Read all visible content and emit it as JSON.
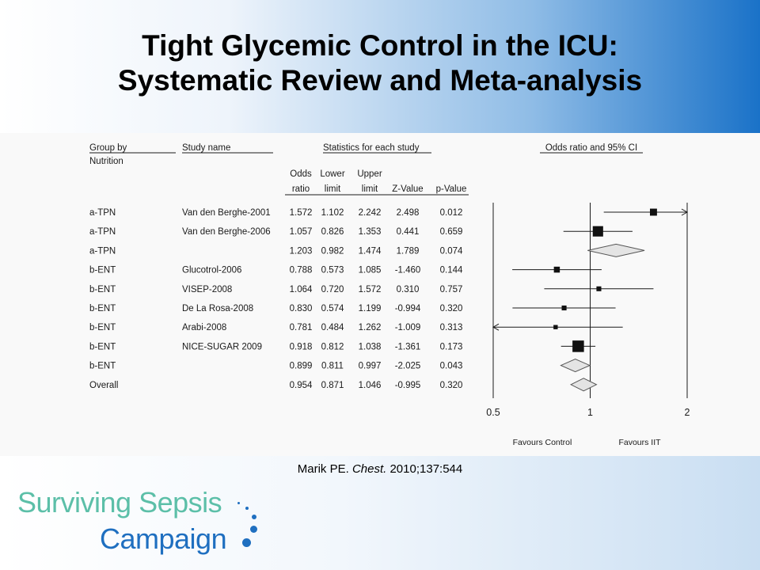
{
  "title": {
    "line1": "Tight Glycemic Control in the ICU:",
    "line2": "Systematic Review and Meta-analysis"
  },
  "citation": {
    "author": "Marik PE.",
    "journal": "Chest.",
    "ref": "2010;137:544"
  },
  "logo": {
    "line1": "Surviving Sepsis",
    "line2": "Campaign"
  },
  "colors": {
    "banner_accent": "#1a72c8",
    "logo_teal": "#5cbfa8",
    "logo_blue": "#1f6fc0"
  },
  "chart_data": {
    "type": "forest",
    "headers": {
      "group": [
        "Group by",
        "Nutrition"
      ],
      "study": "Study name",
      "stats_group": "Statistics for each study",
      "odds": [
        "Odds",
        "ratio"
      ],
      "lower": [
        "Lower",
        "limit"
      ],
      "upper": [
        "Upper",
        "limit"
      ],
      "z": "Z-Value",
      "p": "p-Value",
      "plot": "Odds ratio and 95% CI"
    },
    "rows": [
      {
        "group": "a-TPN",
        "study": "Van den Berghe-2001",
        "odds": "1.572",
        "lower": "1.102",
        "upper": "2.242",
        "z": "2.498",
        "p": "0.012",
        "or": 1.572,
        "lo": 1.102,
        "hi": 2.242,
        "kind": "study",
        "weight": 0.35
      },
      {
        "group": "a-TPN",
        "study": "Van den Berghe-2006",
        "odds": "1.057",
        "lower": "0.826",
        "upper": "1.353",
        "z": "0.441",
        "p": "0.659",
        "or": 1.057,
        "lo": 0.826,
        "hi": 1.353,
        "kind": "study",
        "weight": 0.65
      },
      {
        "group": "a-TPN",
        "study": "",
        "odds": "1.203",
        "lower": "0.982",
        "upper": "1.474",
        "z": "1.789",
        "p": "0.074",
        "or": 1.203,
        "lo": 0.982,
        "hi": 1.474,
        "kind": "summary"
      },
      {
        "group": "b-ENT",
        "study": "Glucotrol-2006",
        "odds": "0.788",
        "lower": "0.573",
        "upper": "1.085",
        "z": "-1.460",
        "p": "0.144",
        "or": 0.788,
        "lo": 0.573,
        "hi": 1.085,
        "kind": "study",
        "weight": 0.25
      },
      {
        "group": "b-ENT",
        "study": "VISEP-2008",
        "odds": "1.064",
        "lower": "0.720",
        "upper": "1.572",
        "z": "0.310",
        "p": "0.757",
        "or": 1.064,
        "lo": 0.72,
        "hi": 1.572,
        "kind": "study",
        "weight": 0.15
      },
      {
        "group": "b-ENT",
        "study": "De La Rosa-2008",
        "odds": "0.830",
        "lower": "0.574",
        "upper": "1.199",
        "z": "-0.994",
        "p": "0.320",
        "or": 0.83,
        "lo": 0.574,
        "hi": 1.199,
        "kind": "study",
        "weight": 0.15
      },
      {
        "group": "b-ENT",
        "study": "Arabi-2008",
        "odds": "0.781",
        "lower": "0.484",
        "upper": "1.262",
        "z": "-1.009",
        "p": "0.313",
        "or": 0.781,
        "lo": 0.484,
        "hi": 1.262,
        "kind": "study",
        "weight": 0.1
      },
      {
        "group": "b-ENT",
        "study": "NICE-SUGAR 2009",
        "odds": "0.918",
        "lower": "0.812",
        "upper": "1.038",
        "z": "-1.361",
        "p": "0.173",
        "or": 0.918,
        "lo": 0.812,
        "hi": 1.038,
        "kind": "study",
        "weight": 0.75
      },
      {
        "group": "b-ENT",
        "study": "",
        "odds": "0.899",
        "lower": "0.811",
        "upper": "0.997",
        "z": "-2.025",
        "p": "0.043",
        "or": 0.899,
        "lo": 0.811,
        "hi": 0.997,
        "kind": "summary"
      },
      {
        "group": "Overall",
        "study": "",
        "odds": "0.954",
        "lower": "0.871",
        "upper": "1.046",
        "z": "-0.995",
        "p": "0.320",
        "or": 0.954,
        "lo": 0.871,
        "hi": 1.046,
        "kind": "summary"
      }
    ],
    "x_scale": "log",
    "x_ticks": [
      {
        "value": 0.5,
        "label": "0.5"
      },
      {
        "value": 1,
        "label": "1"
      },
      {
        "value": 2,
        "label": "2"
      }
    ],
    "xlim": [
      0.5,
      2
    ],
    "footer_left": "Favours Control",
    "footer_right": "Favours IIT"
  }
}
